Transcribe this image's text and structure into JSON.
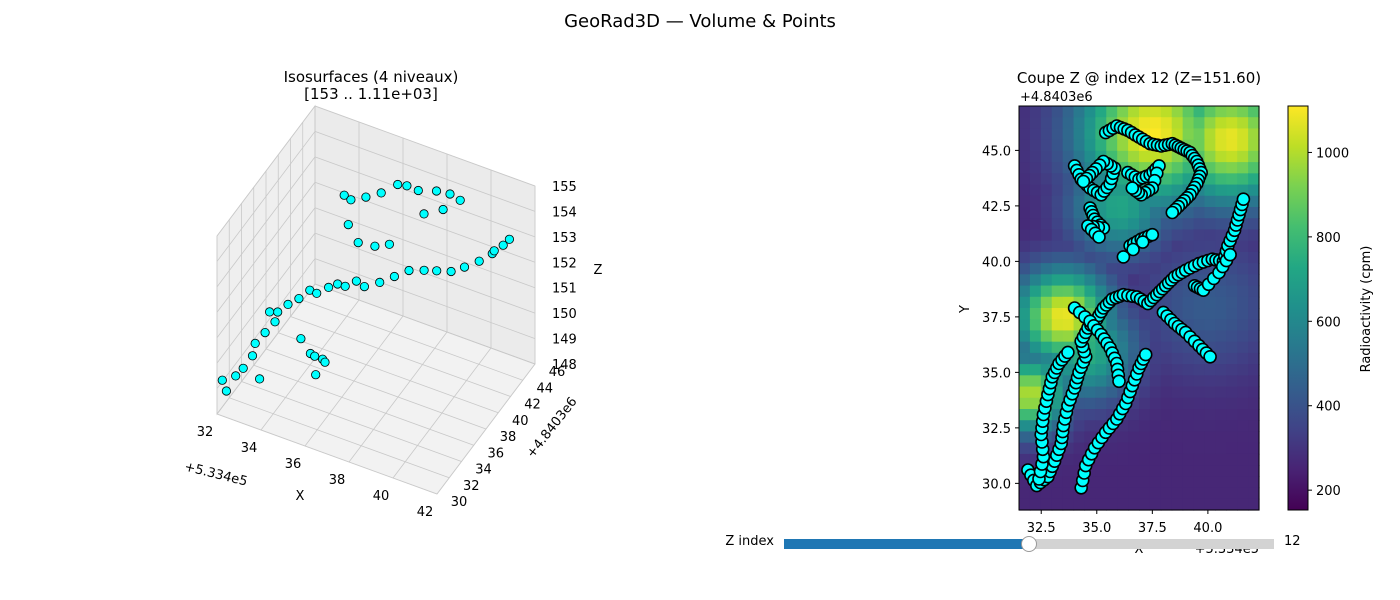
{
  "figure_title": "GeoRad3D — Volume & Points",
  "colors": {
    "points": "#00ffff",
    "point_edge": "#000000",
    "accent": "#1f77b4",
    "track": "#d3d3d3"
  },
  "slider": {
    "label": "Z index",
    "value": "12",
    "fraction": 0.5
  },
  "chart_data": [
    {
      "type": "scatter",
      "projection": "3d",
      "title": "Isosurfaces (4 niveaux)\n[153 .. 1.11e+03]",
      "xlabel": "X",
      "ylabel": "Y",
      "zlabel": "Z",
      "x_offset_label": "+5.334e5",
      "y_offset_label": "+4.8403e6",
      "x_ticks": [
        "32",
        "34",
        "36",
        "38",
        "40",
        "42"
      ],
      "y_ticks": [
        "30",
        "32",
        "34",
        "36",
        "38",
        "40",
        "42",
        "44",
        "46"
      ],
      "z_ticks": [
        "148",
        "149",
        "150",
        "151",
        "152",
        "153",
        "154",
        "155"
      ],
      "xlim": [
        32,
        42
      ],
      "ylim": [
        30,
        46
      ],
      "zlim": [
        148,
        155
      ],
      "grid": true,
      "point_color": "#00ffff",
      "points_xyz": [
        [
          32.1,
          30.5,
          149.2
        ],
        [
          32.4,
          30.1,
          149.0
        ],
        [
          32.6,
          30.9,
          149.4
        ],
        [
          32.8,
          31.4,
          149.6
        ],
        [
          33.0,
          32.2,
          149.9
        ],
        [
          32.9,
          33.0,
          150.1
        ],
        [
          33.1,
          33.9,
          150.3
        ],
        [
          33.3,
          34.8,
          150.5
        ],
        [
          33.2,
          35.6,
          150.6
        ],
        [
          33.5,
          36.2,
          150.8
        ],
        [
          33.8,
          36.9,
          150.9
        ],
        [
          34.1,
          37.6,
          151.1
        ],
        [
          34.5,
          37.3,
          151.2
        ],
        [
          34.9,
          37.8,
          151.4
        ],
        [
          35.2,
          38.2,
          151.5
        ],
        [
          35.6,
          38.0,
          151.6
        ],
        [
          36.0,
          38.4,
          151.8
        ],
        [
          36.5,
          37.9,
          151.9
        ],
        [
          37.0,
          38.6,
          152.0
        ],
        [
          37.5,
          39.2,
          152.2
        ],
        [
          38.0,
          39.8,
          152.4
        ],
        [
          38.6,
          40.1,
          152.5
        ],
        [
          39.2,
          40.0,
          152.7
        ],
        [
          39.8,
          40.2,
          152.8
        ],
        [
          40.3,
          40.6,
          153.0
        ],
        [
          40.8,
          41.2,
          153.2
        ],
        [
          41.2,
          41.9,
          153.4
        ],
        [
          41.5,
          42.6,
          153.6
        ],
        [
          41.7,
          42.9,
          153.8
        ],
        [
          41.4,
          41.5,
          153.7
        ],
        [
          34.2,
          35.8,
          149.8
        ],
        [
          34.8,
          35.2,
          149.6
        ],
        [
          35.3,
          34.1,
          150.0
        ],
        [
          35.8,
          33.6,
          150.2
        ],
        [
          36.1,
          32.9,
          150.4
        ],
        [
          35.9,
          32.1,
          150.1
        ],
        [
          33.8,
          44.3,
          152.6
        ],
        [
          34.3,
          43.6,
          152.8
        ],
        [
          34.9,
          43.9,
          153.0
        ],
        [
          35.4,
          44.6,
          153.1
        ],
        [
          35.9,
          45.5,
          153.3
        ],
        [
          36.4,
          45.2,
          153.5
        ],
        [
          37.0,
          44.9,
          153.6
        ],
        [
          37.8,
          45.0,
          153.8
        ],
        [
          38.5,
          44.7,
          154.0
        ],
        [
          39.1,
          44.2,
          154.1
        ],
        [
          38.6,
          43.2,
          153.9
        ],
        [
          37.9,
          42.6,
          153.7
        ],
        [
          34.6,
          42.1,
          152.4
        ],
        [
          35.3,
          41.2,
          152.2
        ],
        [
          36.2,
          40.7,
          152.5
        ],
        [
          36.8,
          40.9,
          152.7
        ],
        [
          32.5,
          36.8,
          150.0
        ],
        [
          33.6,
          31.2,
          149.5
        ]
      ]
    },
    {
      "type": "heatmap",
      "title": "Coupe Z @ index 12 (Z=151.60)",
      "xlabel": "X",
      "ylabel": "Y",
      "x_offset_label": "+5.334e5",
      "y_offset_label": "+4.8403e6",
      "xlim": [
        31.5,
        42.3
      ],
      "ylim": [
        28.8,
        47.0
      ],
      "x_ticks": [
        32.5,
        35.0,
        37.5,
        40.0
      ],
      "y_ticks": [
        30.0,
        32.5,
        35.0,
        37.5,
        40.0,
        42.5,
        45.0
      ],
      "colormap": "viridis",
      "colorbar_label": "Radioactivity (cpm)",
      "colorbar_range": [
        153,
        1110
      ],
      "colorbar_ticks": [
        200,
        400,
        600,
        800,
        1000
      ],
      "field_hotspots": [
        {
          "x": 37.5,
          "y": 45.8,
          "value": 1110,
          "sigma": 2.3
        },
        {
          "x": 41.0,
          "y": 45.5,
          "value": 1080,
          "sigma": 2.0
        },
        {
          "x": 33.5,
          "y": 37.5,
          "value": 1090,
          "sigma": 1.5
        },
        {
          "x": 32.0,
          "y": 34.0,
          "value": 1000,
          "sigma": 1.2
        },
        {
          "x": 34.5,
          "y": 36.0,
          "value": 760,
          "sigma": 1.6
        },
        {
          "x": 36.0,
          "y": 42.5,
          "value": 720,
          "sigma": 1.6
        },
        {
          "x": 40.0,
          "y": 38.0,
          "value": 430,
          "sigma": 2.2
        }
      ],
      "field_background": 260,
      "point_paths": [
        [
          [
            31.9,
            30.6
          ],
          [
            32.3,
            29.9
          ],
          [
            32.8,
            30.3
          ],
          [
            33.1,
            31.0
          ],
          [
            33.4,
            31.8
          ],
          [
            33.5,
            32.6
          ],
          [
            33.7,
            33.5
          ],
          [
            34.0,
            34.3
          ],
          [
            34.2,
            35.0
          ],
          [
            34.5,
            35.7
          ],
          [
            34.3,
            36.4
          ],
          [
            34.6,
            37.0
          ],
          [
            35.0,
            37.4
          ],
          [
            35.3,
            37.9
          ],
          [
            35.7,
            38.3
          ],
          [
            36.2,
            38.5
          ],
          [
            36.8,
            38.4
          ],
          [
            37.3,
            38.1
          ],
          [
            37.7,
            38.5
          ],
          [
            38.1,
            38.9
          ],
          [
            38.5,
            39.3
          ],
          [
            39.0,
            39.6
          ],
          [
            39.6,
            39.9
          ],
          [
            40.2,
            40.1
          ],
          [
            40.7,
            40.0
          ],
          [
            40.9,
            40.7
          ],
          [
            41.2,
            41.4
          ],
          [
            41.4,
            42.1
          ],
          [
            41.6,
            42.8
          ]
        ],
        [
          [
            32.4,
            30.2
          ],
          [
            32.6,
            31.2
          ],
          [
            32.5,
            32.2
          ],
          [
            32.6,
            33.1
          ],
          [
            32.8,
            34.0
          ],
          [
            33.0,
            34.8
          ],
          [
            33.3,
            35.4
          ],
          [
            33.7,
            35.9
          ]
        ],
        [
          [
            34.3,
            29.8
          ],
          [
            34.5,
            30.8
          ],
          [
            34.9,
            31.6
          ],
          [
            35.4,
            32.3
          ],
          [
            35.9,
            32.9
          ],
          [
            36.3,
            33.6
          ],
          [
            36.6,
            34.4
          ],
          [
            36.9,
            35.2
          ],
          [
            37.2,
            35.8
          ]
        ],
        [
          [
            34.0,
            37.9
          ],
          [
            34.7,
            37.3
          ],
          [
            35.2,
            36.7
          ],
          [
            35.6,
            36.1
          ],
          [
            35.9,
            35.4
          ],
          [
            36.0,
            34.6
          ]
        ],
        [
          [
            38.0,
            37.7
          ],
          [
            38.5,
            37.2
          ],
          [
            39.0,
            36.8
          ],
          [
            39.6,
            36.2
          ],
          [
            40.1,
            35.7
          ]
        ],
        [
          [
            34.0,
            44.3
          ],
          [
            34.3,
            43.7
          ],
          [
            34.7,
            43.3
          ],
          [
            35.2,
            43.0
          ],
          [
            35.6,
            43.5
          ],
          [
            35.8,
            44.2
          ],
          [
            35.3,
            44.5
          ],
          [
            34.8,
            44.0
          ],
          [
            34.4,
            43.6
          ]
        ],
        [
          [
            35.4,
            45.8
          ],
          [
            35.9,
            46.1
          ],
          [
            36.4,
            45.9
          ],
          [
            36.9,
            45.6
          ],
          [
            37.4,
            45.3
          ],
          [
            37.9,
            45.2
          ],
          [
            38.4,
            45.3
          ],
          [
            38.8,
            45.1
          ],
          [
            39.2,
            44.9
          ],
          [
            39.5,
            44.5
          ],
          [
            39.7,
            44.0
          ],
          [
            39.5,
            43.5
          ],
          [
            39.2,
            43.0
          ],
          [
            38.8,
            42.6
          ],
          [
            38.4,
            42.2
          ]
        ],
        [
          [
            36.4,
            44.0
          ],
          [
            36.9,
            43.7
          ],
          [
            37.4,
            43.9
          ],
          [
            37.8,
            44.3
          ],
          [
            37.5,
            43.3
          ],
          [
            37.0,
            43.0
          ],
          [
            36.6,
            43.3
          ]
        ],
        [
          [
            34.7,
            42.4
          ],
          [
            34.9,
            41.9
          ],
          [
            35.3,
            41.5
          ],
          [
            34.6,
            41.6
          ],
          [
            35.1,
            41.1
          ]
        ],
        [
          [
            36.5,
            40.7
          ],
          [
            37.0,
            41.0
          ],
          [
            37.5,
            41.2
          ],
          [
            36.2,
            40.2
          ]
        ],
        [
          [
            39.4,
            38.9
          ],
          [
            39.8,
            38.7
          ],
          [
            40.5,
            39.5
          ],
          [
            41.0,
            40.3
          ]
        ]
      ]
    }
  ]
}
